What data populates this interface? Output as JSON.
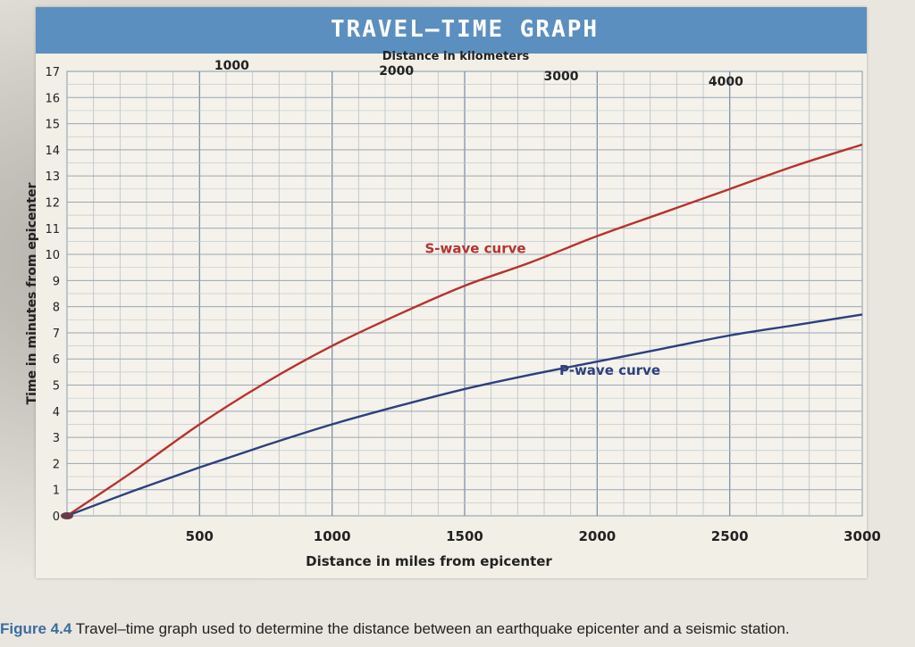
{
  "chart_data": {
    "type": "line",
    "title": "TRAVEL–TIME GRAPH",
    "xlabel": "Distance in miles from epicenter",
    "xlabel_top": "Distance in kilometers",
    "ylabel": "Time in minutes from epicenter",
    "xlim": [
      0,
      3000
    ],
    "ylim": [
      0,
      17
    ],
    "x_ticks": [
      "500",
      "1000",
      "1500",
      "2000",
      "2500",
      "3000"
    ],
    "x_tick_values": [
      500,
      1000,
      1500,
      2000,
      2500,
      3000
    ],
    "km_ticks": [
      "1000",
      "2000",
      "3000",
      "4000"
    ],
    "km_tick_values": [
      1000,
      2000,
      3000,
      4000
    ],
    "y_ticks": [
      "0",
      "1",
      "2",
      "3",
      "4",
      "5",
      "6",
      "7",
      "8",
      "9",
      "10",
      "11",
      "12",
      "13",
      "14",
      "15",
      "16",
      "17"
    ],
    "grid": true,
    "series": [
      {
        "name": "S-wave curve",
        "color": "#b8322e",
        "x": [
          0,
          250,
          500,
          750,
          1000,
          1250,
          1500,
          1750,
          2000,
          2250,
          2500,
          2750,
          3000
        ],
        "y": [
          0,
          1.7,
          3.5,
          5.1,
          6.5,
          7.7,
          8.8,
          9.7,
          10.7,
          11.6,
          12.5,
          13.4,
          14.2
        ]
      },
      {
        "name": "P-wave curve",
        "color": "#2d3f7d",
        "x": [
          0,
          250,
          500,
          750,
          1000,
          1250,
          1500,
          1750,
          2000,
          2250,
          2500,
          2750,
          3000
        ],
        "y": [
          0,
          0.95,
          1.85,
          2.7,
          3.5,
          4.2,
          4.85,
          5.4,
          5.9,
          6.4,
          6.9,
          7.3,
          7.7
        ]
      }
    ]
  },
  "caption": {
    "figure_label": "Figure 4.4",
    "text": "Travel–time graph used to determine the distance between an earthquake epicenter and a seismic station."
  }
}
